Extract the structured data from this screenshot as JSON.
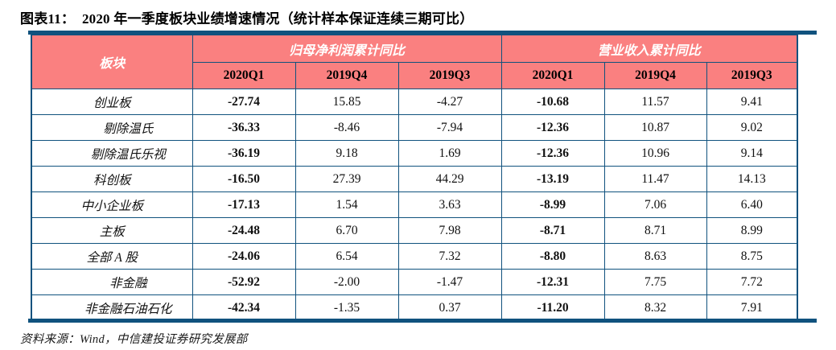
{
  "title": "图表11：  2020 年一季度板块业绩增速情况（统计样本保证连续三期可比）",
  "source": "资料来源：Wind，中信建投证券研究发展部",
  "colors": {
    "header_bg": "#FA8080",
    "border_navy": "#10527E",
    "header_text": "#FFFFFF",
    "body_text": "#000000"
  },
  "table": {
    "sector_header": "板块",
    "groups": [
      {
        "label": "归母净利润累计同比",
        "columns": [
          "2020Q1",
          "2019Q4",
          "2019Q3"
        ]
      },
      {
        "label": "营业收入累计同比",
        "columns": [
          "2020Q1",
          "2019Q4",
          "2019Q3"
        ]
      }
    ],
    "rows": [
      {
        "label": "创业板",
        "indent": false,
        "values": [
          "-27.74",
          "15.85",
          "-4.27",
          "-10.68",
          "11.57",
          "9.41"
        ]
      },
      {
        "label": "剔除温氏",
        "indent": true,
        "values": [
          "-36.33",
          "-8.46",
          "-7.94",
          "-12.36",
          "10.87",
          "9.02"
        ]
      },
      {
        "label": "剔除温氏乐视",
        "indent": true,
        "values": [
          "-36.19",
          "9.18",
          "1.69",
          "-12.36",
          "10.96",
          "9.14"
        ]
      },
      {
        "label": "科创板",
        "indent": false,
        "values": [
          "-16.50",
          "27.39",
          "44.29",
          "-13.19",
          "11.47",
          "14.13"
        ]
      },
      {
        "label": "中小企业板",
        "indent": false,
        "values": [
          "-17.13",
          "1.54",
          "3.63",
          "-8.99",
          "7.06",
          "6.40"
        ]
      },
      {
        "label": "主板",
        "indent": false,
        "values": [
          "-24.48",
          "6.70",
          "7.98",
          "-8.71",
          "8.71",
          "8.99"
        ]
      },
      {
        "label": "全部 A 股",
        "indent": false,
        "values": [
          "-24.06",
          "6.54",
          "7.32",
          "-8.80",
          "8.63",
          "8.75"
        ]
      },
      {
        "label": "非金融",
        "indent": true,
        "values": [
          "-52.92",
          "-2.00",
          "-1.47",
          "-12.31",
          "7.75",
          "7.72"
        ]
      },
      {
        "label": "非金融石油石化",
        "indent": true,
        "values": [
          "-42.34",
          "-1.35",
          "0.37",
          "-11.20",
          "8.32",
          "7.91"
        ]
      }
    ]
  }
}
